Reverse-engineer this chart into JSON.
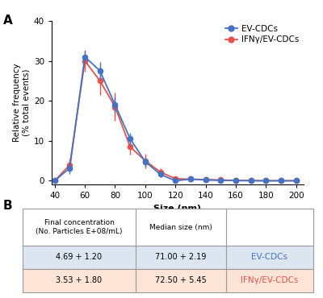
{
  "x": [
    40,
    50,
    60,
    70,
    80,
    90,
    100,
    110,
    120,
    130,
    140,
    150,
    160,
    170,
    180,
    190,
    200
  ],
  "ev_cdcs_y": [
    0.0,
    3.2,
    31.0,
    27.5,
    19.0,
    10.5,
    4.8,
    1.6,
    0.0,
    0.4,
    0.2,
    0.1,
    0.05,
    0.0,
    0.0,
    0.0,
    0.0
  ],
  "ev_cdcs_err": [
    0.0,
    1.5,
    1.5,
    2.2,
    2.0,
    1.5,
    1.2,
    0.8,
    0.5,
    0.3,
    0.2,
    0.1,
    0.05,
    0.0,
    0.0,
    0.0,
    0.0
  ],
  "ifn_y": [
    0.0,
    4.0,
    30.0,
    25.0,
    18.5,
    8.5,
    5.0,
    2.2,
    0.5,
    0.4,
    0.3,
    0.2,
    0.1,
    0.05,
    0.0,
    0.0,
    0.0
  ],
  "ifn_err": [
    0.0,
    1.5,
    2.8,
    3.5,
    3.5,
    2.0,
    1.8,
    1.0,
    0.6,
    0.3,
    0.2,
    0.15,
    0.1,
    0.05,
    0.0,
    0.0,
    0.0
  ],
  "ev_color": "#4472C4",
  "ifn_color": "#E8524A",
  "xlabel": "Size (nm)",
  "ylabel": "Relative frequency\n(% total events)",
  "ylim": [
    -1,
    40
  ],
  "xlim": [
    38,
    205
  ],
  "xticks": [
    40,
    60,
    80,
    100,
    120,
    140,
    160,
    180,
    200
  ],
  "yticks": [
    0,
    10,
    20,
    30,
    40
  ],
  "panel_a_label": "A",
  "panel_b_label": "B",
  "legend_ev": "EV-CDCs",
  "legend_ifn": "IFNγ/EV-CDCs",
  "table_header": [
    "Final concentration\n(No. Particles E+08/mL)",
    "Median size (nm)",
    ""
  ],
  "table_row1": [
    "4.69 + 1.20",
    "71.00 + 2.19",
    "EV-CDCs"
  ],
  "table_row2": [
    "3.53 + 1.80",
    "72.50 + 5.45",
    "IFNγ/EV-CDCs"
  ],
  "row1_bg": "#dce6f1",
  "row2_bg": "#fce4d6",
  "table_border_color": "#999999"
}
